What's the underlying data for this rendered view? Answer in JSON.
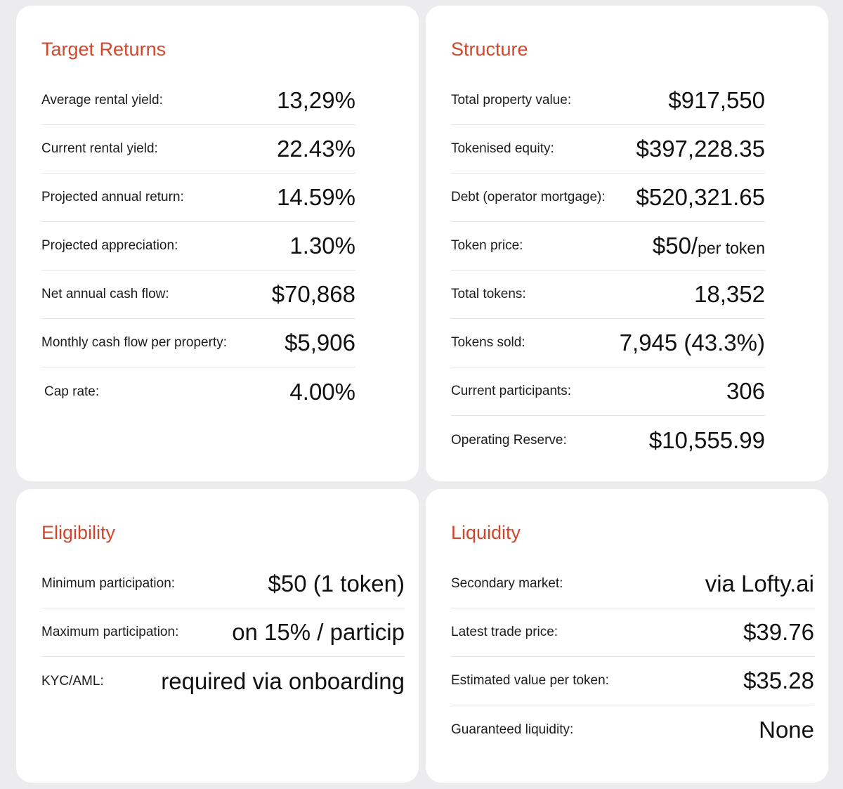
{
  "target_returns": {
    "title": "Target Returns",
    "rows": [
      {
        "label": "Average rental yield:",
        "value": "13,29%"
      },
      {
        "label": "Current rental yield:",
        "value": "22.43%"
      },
      {
        "label": "Projected annual return:",
        "value": "14.59%"
      },
      {
        "label": "Projected appreciation:",
        "value": "1.30%"
      },
      {
        "label": "Net annual cash flow:",
        "value": "$70,868"
      },
      {
        "label": "Monthly cash flow per property:",
        "value": "$5,906"
      },
      {
        "label": "Cap rate:",
        "value": "4.00%"
      }
    ]
  },
  "structure": {
    "title": "Structure",
    "rows": [
      {
        "label": "Total property value:",
        "value": "$917,550"
      },
      {
        "label": "Tokenised equity:",
        "value": "$397,228.35"
      },
      {
        "label": "Debt (operator mortgage):",
        "value": "$520,321.65"
      },
      {
        "label": "Token price:",
        "value": "$50/",
        "suffix": "per token"
      },
      {
        "label": "Total tokens:",
        "value": "18,352"
      },
      {
        "label": "Tokens sold:",
        "value": "7,945 (43.3%)"
      },
      {
        "label": "Current participants:",
        "value": "306"
      },
      {
        "label": "Operating Reserve:",
        "value": "$10,555.99"
      }
    ]
  },
  "eligibility": {
    "title": "Eligibility",
    "rows": [
      {
        "label": "Minimum participation:",
        "value": "$50 (1 token)"
      },
      {
        "label": "Maximum participation:",
        "value": "on 15% / particip"
      },
      {
        "label": "KYC/AML:",
        "value": "required via onboarding"
      }
    ]
  },
  "liquidity": {
    "title": "Liquidity",
    "rows": [
      {
        "label": "Secondary market:",
        "value": "via Lofty.ai"
      },
      {
        "label": "Latest trade price:",
        "value": "$39.76"
      },
      {
        "label": "Estimated value per token:",
        "value": "$35.28"
      },
      {
        "label": "Guaranteed liquidity:",
        "value": "None"
      }
    ]
  }
}
